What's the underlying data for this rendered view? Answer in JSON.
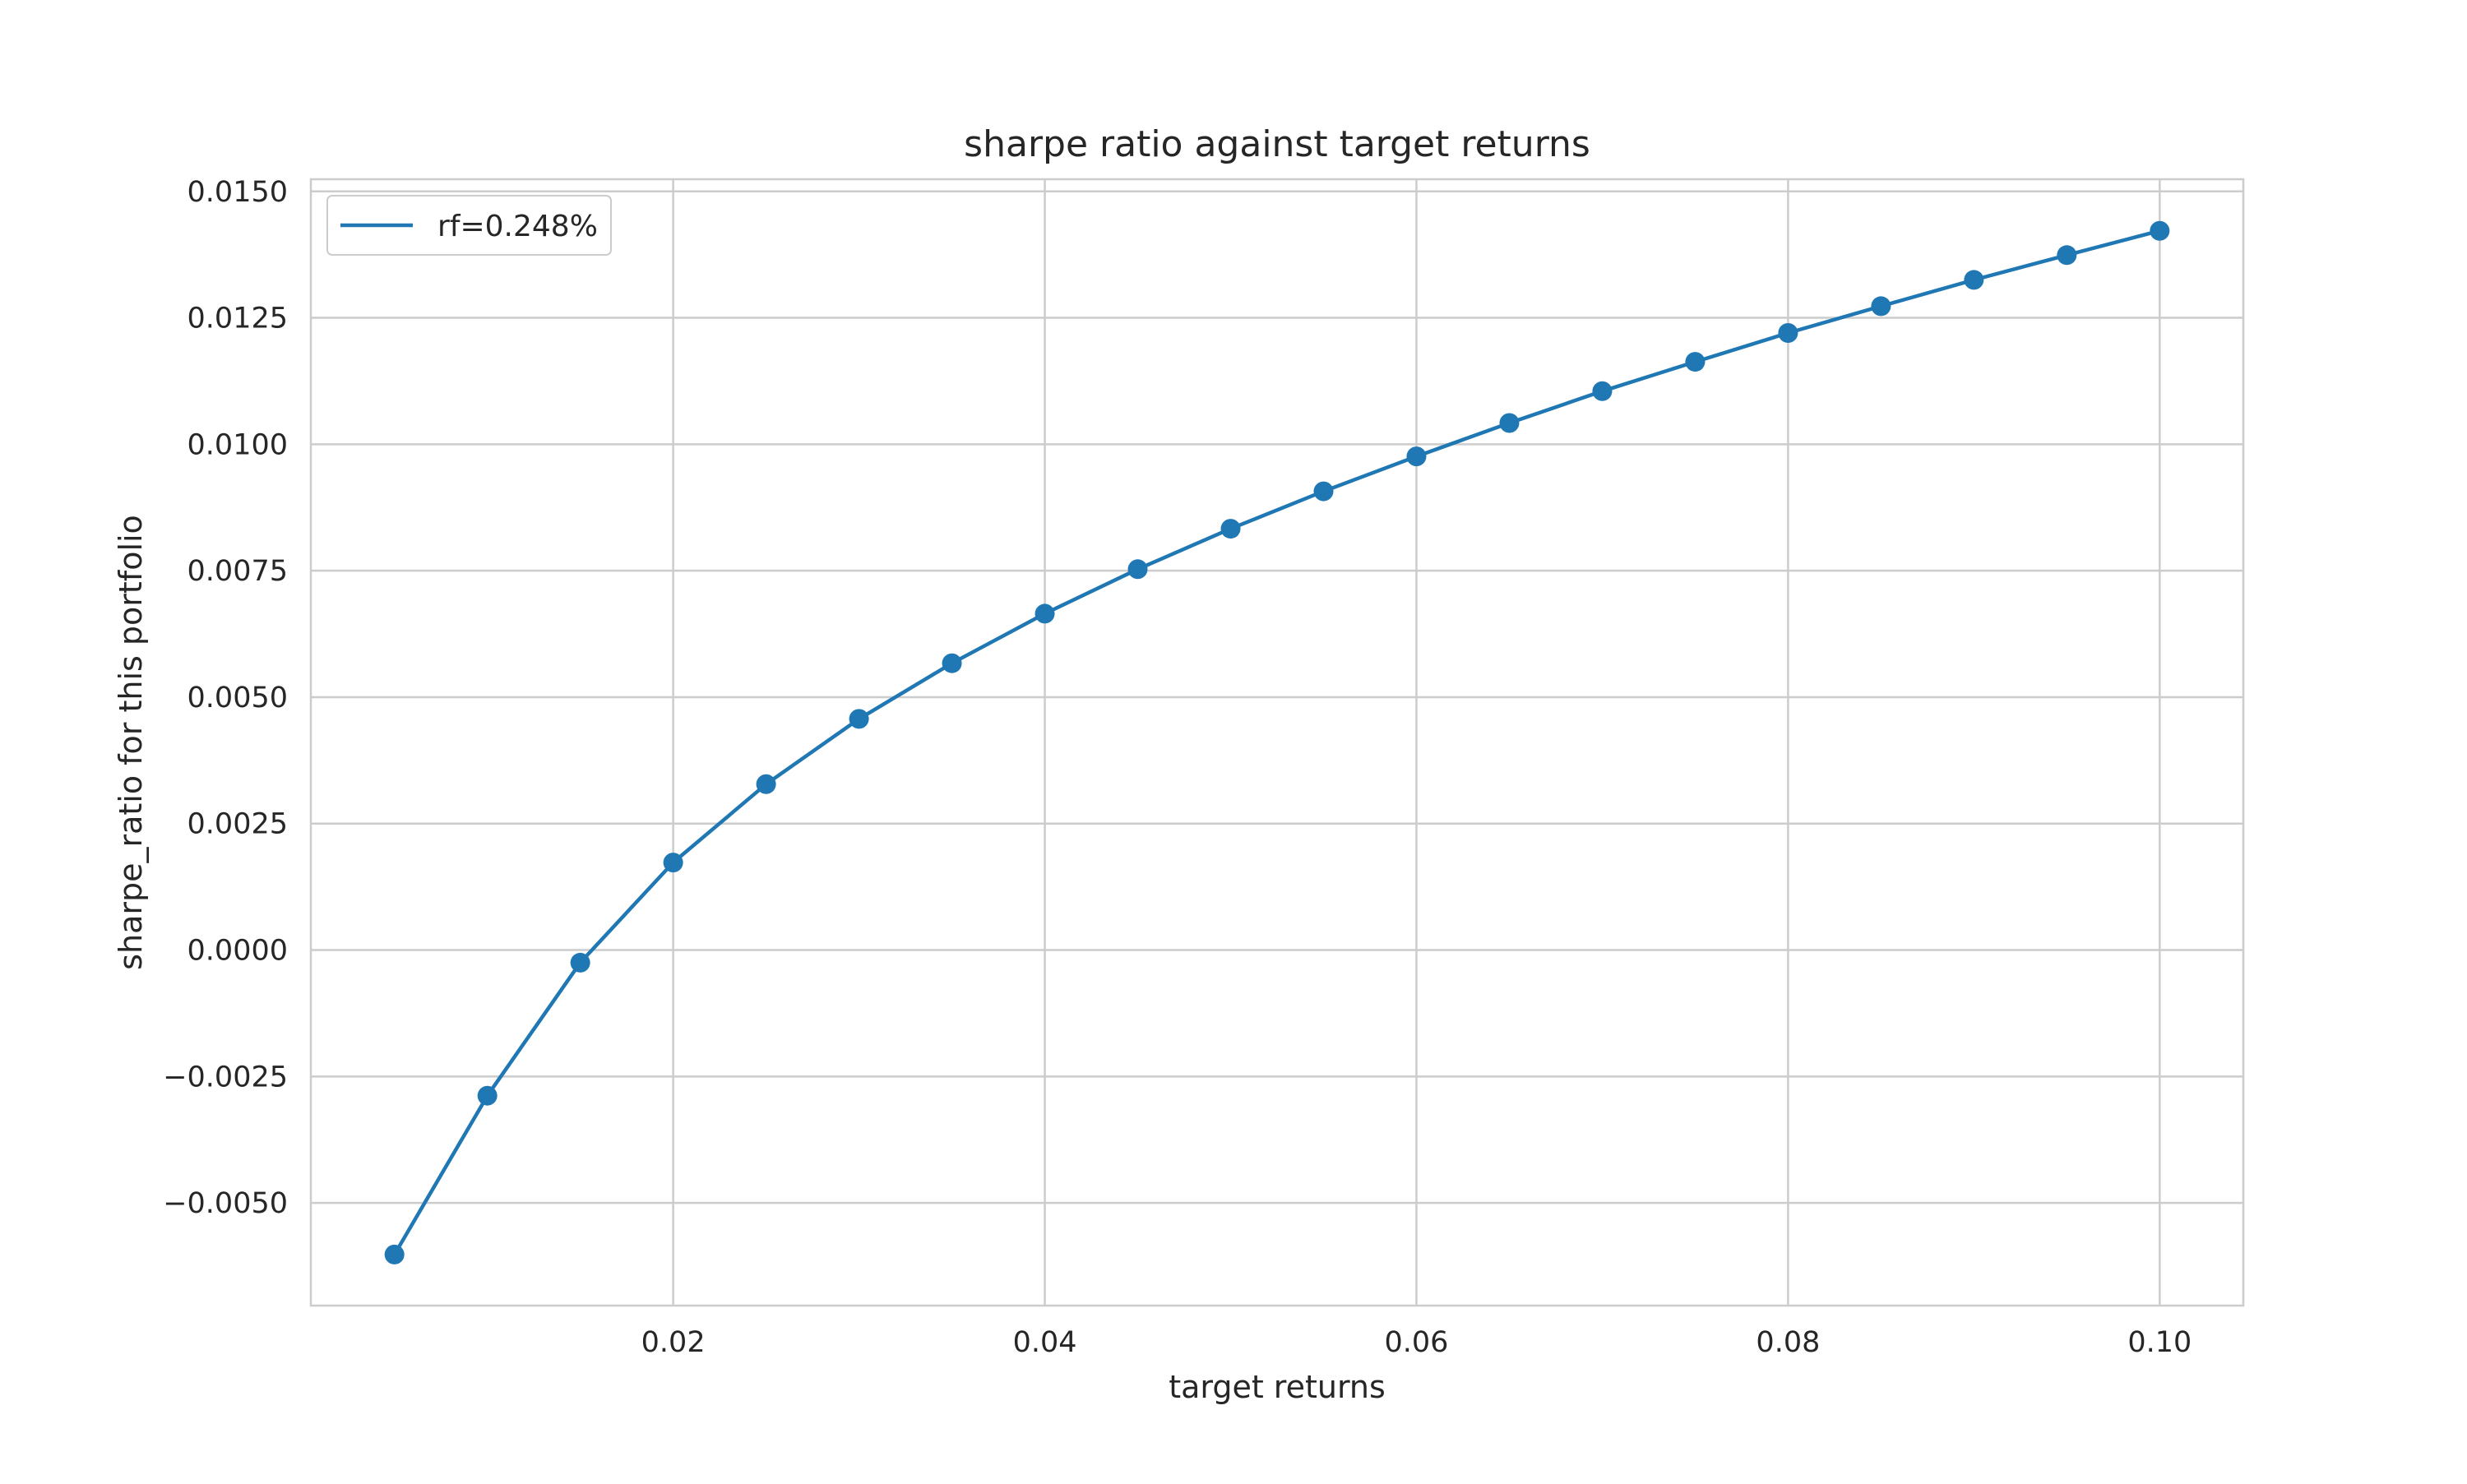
{
  "chart_data": {
    "type": "line",
    "title": "sharpe ratio against target returns",
    "xlabel": "target returns",
    "ylabel": "sharpe_ratio for this portfolio",
    "xlim": [
      0.0005,
      0.1045
    ],
    "ylim": [
      -0.00703,
      0.01524
    ],
    "x_ticks": [
      {
        "value": 0.02,
        "label": "0.02"
      },
      {
        "value": 0.04,
        "label": "0.04"
      },
      {
        "value": 0.06,
        "label": "0.06"
      },
      {
        "value": 0.08,
        "label": "0.08"
      },
      {
        "value": 0.1,
        "label": "0.10"
      }
    ],
    "y_ticks": [
      {
        "value": -0.005,
        "label": "−0.0050"
      },
      {
        "value": -0.0025,
        "label": "−0.0025"
      },
      {
        "value": 0.0,
        "label": "0.0000"
      },
      {
        "value": 0.0025,
        "label": "0.0025"
      },
      {
        "value": 0.005,
        "label": "0.0050"
      },
      {
        "value": 0.0075,
        "label": "0.0075"
      },
      {
        "value": 0.01,
        "label": "0.0100"
      },
      {
        "value": 0.0125,
        "label": "0.0125"
      },
      {
        "value": 0.015,
        "label": "0.0150"
      }
    ],
    "grid": true,
    "legend_position": "top-left",
    "series": [
      {
        "name": "rf=0.248%",
        "color": "#1f77b4",
        "marker": "circle",
        "points": [
          {
            "x": 0.005,
            "y": -0.00602
          },
          {
            "x": 0.01,
            "y": -0.00288
          },
          {
            "x": 0.015,
            "y": -0.00025
          },
          {
            "x": 0.02,
            "y": 0.00173
          },
          {
            "x": 0.025,
            "y": 0.00328
          },
          {
            "x": 0.03,
            "y": 0.00457
          },
          {
            "x": 0.035,
            "y": 0.00567
          },
          {
            "x": 0.04,
            "y": 0.00665
          },
          {
            "x": 0.045,
            "y": 0.00753
          },
          {
            "x": 0.05,
            "y": 0.00833
          },
          {
            "x": 0.055,
            "y": 0.00907
          },
          {
            "x": 0.06,
            "y": 0.00976
          },
          {
            "x": 0.065,
            "y": 0.01042
          },
          {
            "x": 0.07,
            "y": 0.01105
          },
          {
            "x": 0.075,
            "y": 0.01163
          },
          {
            "x": 0.08,
            "y": 0.0122
          },
          {
            "x": 0.085,
            "y": 0.01273
          },
          {
            "x": 0.09,
            "y": 0.01325
          },
          {
            "x": 0.095,
            "y": 0.01374
          },
          {
            "x": 0.1,
            "y": 0.01422
          }
        ]
      }
    ]
  }
}
